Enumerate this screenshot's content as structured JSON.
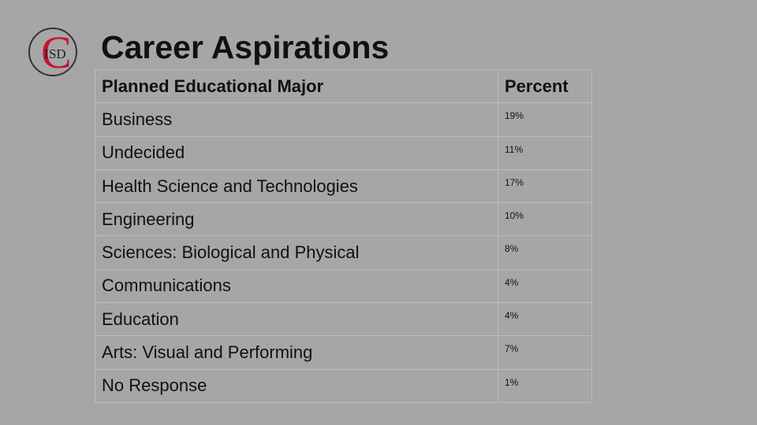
{
  "logo": {
    "letter": "C",
    "text": "ISD"
  },
  "header": {
    "title": "Career Aspirations"
  },
  "table": {
    "columns": [
      "Planned Educational Major",
      "Percent"
    ],
    "rows": [
      [
        "Business",
        "19%"
      ],
      [
        "Undecided",
        "11%"
      ],
      [
        "Health Science and Technologies",
        "17%"
      ],
      [
        "Engineering",
        "10%"
      ],
      [
        "Sciences: Biological and Physical",
        "8%"
      ],
      [
        "Communications",
        "4%"
      ],
      [
        "Education",
        "4%"
      ],
      [
        "Arts: Visual and Performing",
        "7%"
      ],
      [
        "No Response",
        "1%"
      ]
    ]
  }
}
